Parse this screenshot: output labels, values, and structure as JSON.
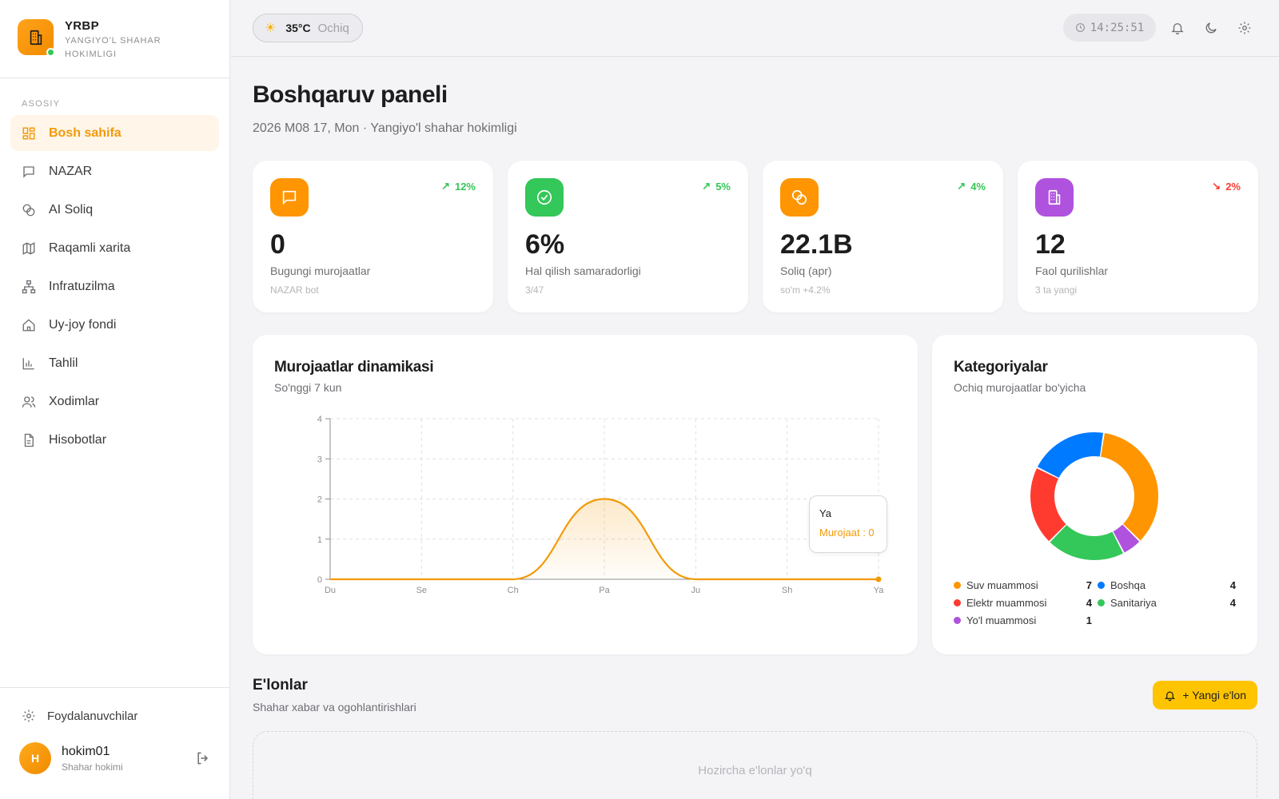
{
  "brand": {
    "title": "YRBP",
    "subtitle": "YANGIYO'L SHAHAR HOKIMLIGI"
  },
  "sidebar": {
    "section_label": "ASOSIY",
    "items": [
      {
        "label": "Bosh sahifa",
        "icon": "dashboard-icon",
        "active": true
      },
      {
        "label": "NAZAR",
        "icon": "message-icon"
      },
      {
        "label": "AI Soliq",
        "icon": "coins-icon"
      },
      {
        "label": "Raqamli xarita",
        "icon": "map-icon"
      },
      {
        "label": "Infratuzilma",
        "icon": "network-icon"
      },
      {
        "label": "Uy-joy fondi",
        "icon": "home-icon"
      },
      {
        "label": "Tahlil",
        "icon": "bar-chart-icon"
      },
      {
        "label": "Xodimlar",
        "icon": "users-icon"
      },
      {
        "label": "Hisobotlar",
        "icon": "document-icon"
      }
    ],
    "users_link": "Foydalanuvchilar",
    "user": {
      "initial": "H",
      "name": "hokim01",
      "role": "Shahar hokimi"
    }
  },
  "topbar": {
    "weather": {
      "temp": "35°C",
      "condition": "Ochiq"
    },
    "clock": "14:25:51"
  },
  "page": {
    "title": "Boshqaruv paneli",
    "subtitle": "2026 M08 17, Mon · Yangiyo'l shahar hokimligi"
  },
  "stats": [
    {
      "value": "0",
      "label": "Bugungi murojaatlar",
      "sub": "NAZAR bot",
      "trend": "12%",
      "trend_dir": "up",
      "color": "#ff9500",
      "icon": "message-icon"
    },
    {
      "value": "6%",
      "label": "Hal qilish samaradorligi",
      "sub": "3/47",
      "trend": "5%",
      "trend_dir": "up",
      "color": "#34c759",
      "icon": "check-circle-icon"
    },
    {
      "value": "22.1B",
      "label": "Soliq (apr)",
      "sub": "so'm +4.2%",
      "trend": "4%",
      "trend_dir": "up",
      "color": "#ff9500",
      "icon": "coins-icon"
    },
    {
      "value": "12",
      "label": "Faol qurilishlar",
      "sub": "3 ta yangi",
      "trend": "2%",
      "trend_dir": "down",
      "color": "#af52de",
      "icon": "building-icon"
    }
  ],
  "line_card": {
    "title": "Murojaatlar dinamikasi",
    "subtitle": "So'nggi 7 kun",
    "tooltip": {
      "label": "Ya",
      "text": "Murojaat : 0"
    }
  },
  "donut_card": {
    "title": "Kategoriyalar",
    "subtitle": "Ochiq murojaatlar bo'yicha"
  },
  "announcements": {
    "title": "E'lonlar",
    "subtitle": "Shahar xabar va ogohlantirishlari",
    "button": "+ Yangi e'lon",
    "empty": "Hozircha e'lonlar yo'q"
  },
  "chart_data": [
    {
      "type": "area",
      "categories": [
        "Du",
        "Se",
        "Ch",
        "Pa",
        "Ju",
        "Sh",
        "Ya"
      ],
      "series": [
        {
          "name": "Murojaat",
          "values": [
            0,
            0,
            0,
            2,
            0,
            0,
            0
          ],
          "color": "#f29a0a"
        }
      ],
      "ylim": [
        0,
        4
      ],
      "yticks": [
        "0",
        "1",
        "2",
        "3",
        "4"
      ],
      "grid": true
    },
    {
      "type": "pie",
      "donut": true,
      "slices": [
        {
          "label": "Suv muammosi",
          "value": 7,
          "color": "#ff9500"
        },
        {
          "label": "Yo'l muammosi",
          "value": 1,
          "color": "#af52de"
        },
        {
          "label": "Sanitariya",
          "value": 4,
          "color": "#34c759"
        },
        {
          "label": "Elektr muammosi",
          "value": 4,
          "color": "#ff3b30"
        },
        {
          "label": "Boshqa",
          "value": 4,
          "color": "#007aff"
        }
      ],
      "legend_order": [
        {
          "label": "Suv muammosi",
          "value": "7",
          "color": "#ff9500"
        },
        {
          "label": "Boshqa",
          "value": "4",
          "color": "#007aff"
        },
        {
          "label": "Elektr muammosi",
          "value": "4",
          "color": "#ff3b30"
        },
        {
          "label": "Sanitariya",
          "value": "4",
          "color": "#34c759"
        },
        {
          "label": "Yo'l muammosi",
          "value": "1",
          "color": "#af52de"
        }
      ]
    }
  ]
}
